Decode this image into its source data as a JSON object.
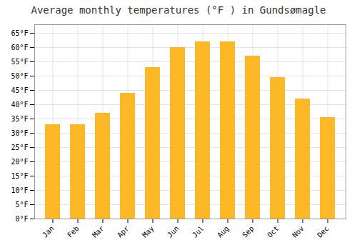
{
  "chart_data": {
    "type": "bar",
    "title": "Average monthly temperatures (°F ) in Gundsømagle",
    "categories": [
      "Jan",
      "Feb",
      "Mar",
      "Apr",
      "May",
      "Jun",
      "Jul",
      "Aug",
      "Sep",
      "Oct",
      "Nov",
      "Dec"
    ],
    "values": [
      33,
      33,
      37,
      44,
      53,
      60,
      62,
      62,
      57,
      49.5,
      42,
      35.5
    ],
    "color": "#FDB827",
    "ylim": [
      0,
      68
    ],
    "yticks": [
      {
        "value": 0,
        "label": "0°F"
      },
      {
        "value": 5,
        "label": "5°F"
      },
      {
        "value": 10,
        "label": "10°F"
      },
      {
        "value": 15,
        "label": "15°F"
      },
      {
        "value": 20,
        "label": "20°F"
      },
      {
        "value": 25,
        "label": "25°F"
      },
      {
        "value": 30,
        "label": "30°F"
      },
      {
        "value": 35,
        "label": "35°F"
      },
      {
        "value": 40,
        "label": "40°F"
      },
      {
        "value": 45,
        "label": "45°F"
      },
      {
        "value": 50,
        "label": "50°F"
      },
      {
        "value": 55,
        "label": "55°F"
      },
      {
        "value": 60,
        "label": "60°F"
      },
      {
        "value": 65,
        "label": "65°F"
      }
    ],
    "grid": true
  }
}
